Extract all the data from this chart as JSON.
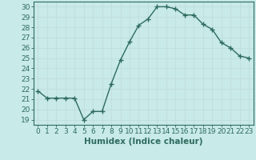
{
  "x": [
    0,
    1,
    2,
    3,
    4,
    5,
    6,
    7,
    8,
    9,
    10,
    11,
    12,
    13,
    14,
    15,
    16,
    17,
    18,
    19,
    20,
    21,
    22,
    23
  ],
  "y": [
    21.8,
    21.1,
    21.1,
    21.1,
    21.1,
    19.0,
    19.8,
    19.8,
    22.5,
    24.8,
    26.6,
    28.2,
    28.8,
    30.0,
    30.0,
    29.8,
    29.2,
    29.2,
    28.3,
    27.8,
    26.5,
    26.0,
    25.2,
    25.0
  ],
  "line_color": "#2e6b5e",
  "marker": "+",
  "bg_color": "#c8eae8",
  "grid_color": "#c0dedd",
  "xlabel": "Humidex (Indice chaleur)",
  "ylim": [
    18.5,
    30.5
  ],
  "xlim": [
    -0.5,
    23.5
  ],
  "yticks": [
    19,
    20,
    21,
    22,
    23,
    24,
    25,
    26,
    27,
    28,
    29,
    30
  ],
  "xticks": [
    0,
    1,
    2,
    3,
    4,
    5,
    6,
    7,
    8,
    9,
    10,
    11,
    12,
    13,
    14,
    15,
    16,
    17,
    18,
    19,
    20,
    21,
    22,
    23
  ],
  "xlabel_fontsize": 7.5,
  "tick_fontsize": 6.5,
  "line_width": 1.0
}
